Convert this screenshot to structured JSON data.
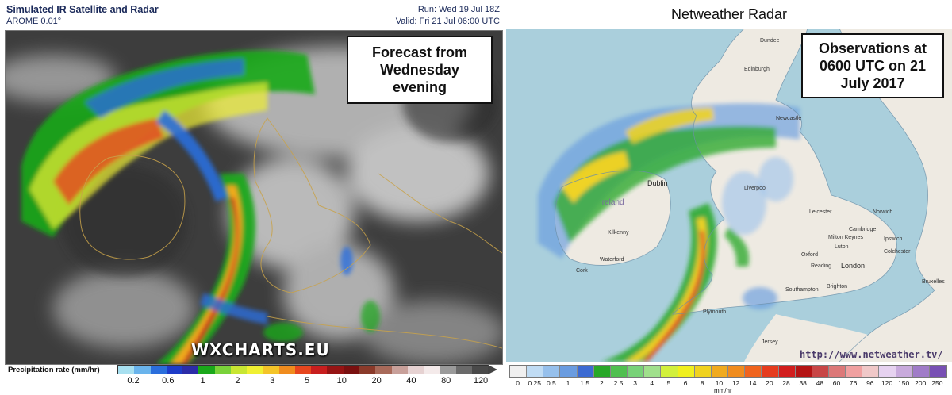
{
  "left_panel": {
    "title": "Simulated IR Satellite and Radar",
    "subtitle": "AROME 0.01°",
    "run": "Run: Wed 19 Jul 18Z",
    "valid": "Valid: Fri 21 Jul 06:00 UTC",
    "box_text": "Forecast from Wednesday evening",
    "watermark": "WXCHARTS.EU",
    "legend": {
      "title": "Precipitation rate (mm/hr)",
      "ticks": [
        "0.2",
        "0.6",
        "1",
        "2",
        "3",
        "5",
        "10",
        "20",
        "40",
        "80",
        "120"
      ],
      "colors": [
        "#a8e0f0",
        "#6ab4ec",
        "#2a6edc",
        "#1e3cc8",
        "#2c2ca8",
        "#1aa81a",
        "#7ad23a",
        "#c8e632",
        "#f0f032",
        "#f4c428",
        "#f08c1e",
        "#e6461e",
        "#c81e1e",
        "#961414",
        "#7a1010",
        "#8a3a2a",
        "#a86a5a",
        "#c8a09a",
        "#e6d2d2",
        "#f4eaea",
        "#9a9a9a",
        "#6a6a6a",
        "#4a4a4a"
      ]
    }
  },
  "right_panel": {
    "title": "Netweather Radar",
    "box_text": "Observations at 0600 UTC on 21 July 2017",
    "url": "http://www.netweather.tv/",
    "legend": {
      "ticks": [
        "0",
        "0.25",
        "0.5",
        "1",
        "1.5",
        "2",
        "2.5",
        "3",
        "4",
        "5",
        "6",
        "8",
        "10",
        "12",
        "14",
        "20",
        "28",
        "38",
        "48",
        "60",
        "76",
        "96",
        "120",
        "150",
        "200",
        "250"
      ],
      "unit": "mm/hr",
      "colors": [
        "#f0f0f0",
        "#c0dcf4",
        "#96c0ec",
        "#6a9ce0",
        "#3c6ad2",
        "#28a828",
        "#50c050",
        "#78d278",
        "#a0e08c",
        "#d2f03c",
        "#f0f01e",
        "#f0d21e",
        "#f0aa1e",
        "#f08c1e",
        "#f0641e",
        "#e63c1e",
        "#d21e1e",
        "#b41414",
        "#c84646",
        "#dc7878",
        "#f0a0a0",
        "#f0c8c8",
        "#e6d2f0",
        "#c8aadc",
        "#a07cc8",
        "#7850b4"
      ]
    },
    "places": [
      {
        "name": "Dundee"
      },
      {
        "name": "Edinburgh"
      },
      {
        "name": "Newcastle"
      },
      {
        "name": "Dublin"
      },
      {
        "name": "Ireland"
      },
      {
        "name": "Kilkenny"
      },
      {
        "name": "Waterford"
      },
      {
        "name": "Cork"
      },
      {
        "name": "Liverpool"
      },
      {
        "name": "Leicester"
      },
      {
        "name": "Norwich"
      },
      {
        "name": "Cambridge"
      },
      {
        "name": "Ipswich"
      },
      {
        "name": "Colchester"
      },
      {
        "name": "Oxford"
      },
      {
        "name": "Reading"
      },
      {
        "name": "London"
      },
      {
        "name": "Brighton"
      },
      {
        "name": "Southampton"
      },
      {
        "name": "Plymouth"
      },
      {
        "name": "Jersey"
      },
      {
        "name": "Bruxelles"
      },
      {
        "name": "Milton Keynes"
      },
      {
        "name": "Luton"
      }
    ]
  }
}
